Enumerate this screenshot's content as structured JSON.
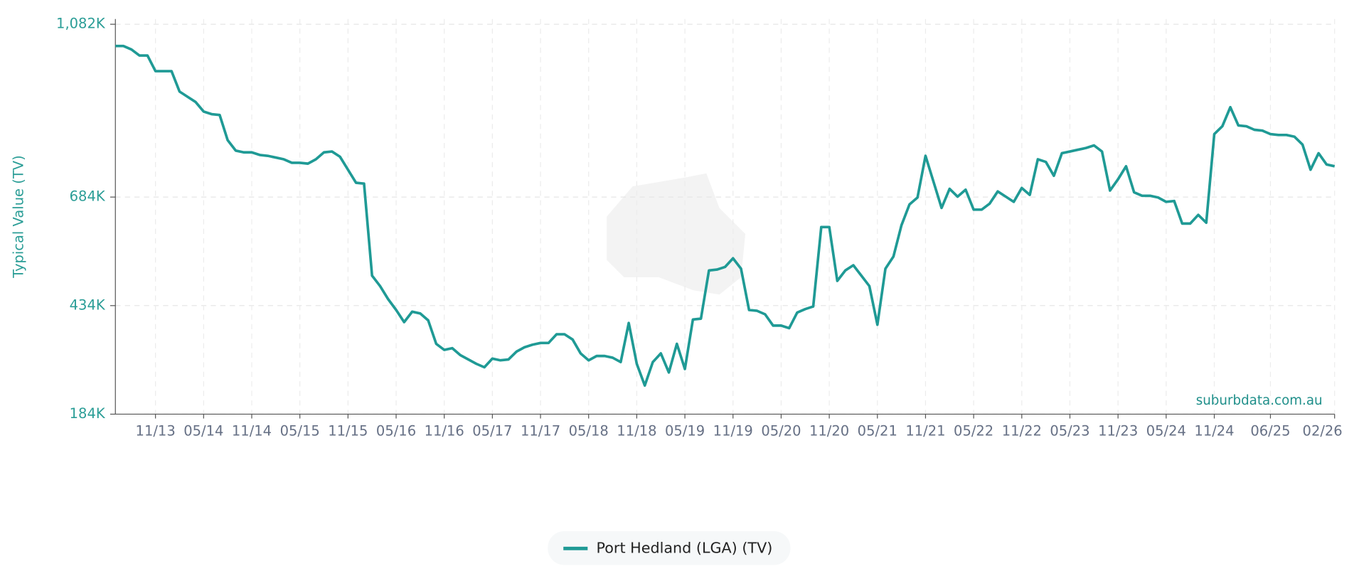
{
  "chart_data": {
    "type": "line",
    "y_label": "Typical Value (TV)",
    "watermark": "suburbdata.com.au",
    "x": [
      "06/13",
      "07/13",
      "08/13",
      "09/13",
      "10/13",
      "11/13",
      "12/13",
      "01/14",
      "02/14",
      "03/14",
      "04/14",
      "05/14",
      "06/14",
      "07/14",
      "08/14",
      "09/14",
      "10/14",
      "11/14",
      "12/14",
      "01/15",
      "02/15",
      "03/15",
      "04/15",
      "05/15",
      "06/15",
      "07/15",
      "08/15",
      "09/15",
      "10/15",
      "11/15",
      "12/15",
      "01/16",
      "02/16",
      "03/16",
      "04/16",
      "05/16",
      "06/16",
      "07/16",
      "08/16",
      "09/16",
      "10/16",
      "11/16",
      "12/16",
      "01/17",
      "02/17",
      "03/17",
      "04/17",
      "05/17",
      "06/17",
      "07/17",
      "08/17",
      "09/17",
      "10/17",
      "11/17",
      "12/17",
      "01/18",
      "02/18",
      "03/18",
      "04/18",
      "05/18",
      "06/18",
      "07/18",
      "08/18",
      "09/18",
      "10/18",
      "11/18",
      "12/18",
      "01/19",
      "02/19",
      "03/19",
      "04/19",
      "05/19",
      "06/19",
      "07/19",
      "08/19",
      "09/19",
      "10/19",
      "11/19",
      "12/19",
      "01/20",
      "02/20",
      "03/20",
      "04/20",
      "05/20",
      "06/20",
      "07/20",
      "08/20",
      "09/20",
      "10/20",
      "11/20",
      "12/20",
      "01/21",
      "02/21",
      "03/21",
      "04/21",
      "05/21",
      "06/21",
      "07/21",
      "08/21",
      "09/21",
      "10/21",
      "11/21",
      "12/21",
      "01/22",
      "02/22",
      "03/22",
      "04/22",
      "05/22",
      "06/22",
      "07/22",
      "08/22",
      "09/22",
      "10/22",
      "11/22",
      "12/22",
      "01/23",
      "02/23",
      "03/23",
      "04/23",
      "05/23",
      "06/23",
      "07/23",
      "08/23",
      "09/23",
      "10/23",
      "11/23",
      "12/23",
      "01/24",
      "02/24",
      "03/24",
      "04/24",
      "05/24",
      "06/24",
      "07/24",
      "08/24",
      "09/24",
      "10/24",
      "11/24",
      "12/24",
      "01/25",
      "02/25",
      "03/25",
      "04/25",
      "05/25",
      "06/25",
      "07/25",
      "08/25",
      "09/25",
      "10/25",
      "11/25",
      "12/25",
      "01/26",
      "02/26"
    ],
    "series": [
      {
        "name": "Port Hedland (LGA) (TV)",
        "color": "#1f9a95",
        "values": [
          1032,
          1032,
          1024,
          1010,
          1010,
          974,
          974,
          974,
          927,
          915,
          903,
          881,
          875,
          873,
          815,
          791,
          787,
          787,
          781,
          779,
          775,
          771,
          763,
          763,
          761,
          771,
          787,
          789,
          777,
          747,
          717,
          715,
          503,
          479,
          449,
          424,
          396,
          420,
          416,
          400,
          346,
          332,
          336,
          320,
          310,
          300,
          292,
          312,
          308,
          310,
          328,
          338,
          344,
          348,
          348,
          368,
          368,
          356,
          324,
          308,
          318,
          318,
          314,
          304,
          394,
          300,
          250,
          304,
          324,
          280,
          346,
          288,
          402,
          404,
          515,
          517,
          523,
          543,
          519,
          424,
          422,
          414,
          388,
          388,
          382,
          418,
          426,
          432,
          615,
          615,
          491,
          515,
          527,
          503,
          479,
          390,
          519,
          547,
          619,
          667,
          683,
          779,
          719,
          659,
          703,
          685,
          701,
          655,
          655,
          669,
          697,
          685,
          673,
          705,
          689,
          771,
          765,
          733,
          785,
          789,
          793,
          797,
          803,
          789,
          699,
          725,
          755,
          695,
          687,
          687,
          683,
          673,
          675,
          623,
          623,
          643,
          625,
          829,
          847,
          891,
          849,
          847,
          839,
          837,
          829,
          827,
          827,
          823,
          805,
          747,
          785,
          759,
          755
        ]
      }
    ],
    "ylim": [
      184,
      1082
    ],
    "yticks": [
      {
        "value": 184,
        "label": "184K"
      },
      {
        "value": 434,
        "label": "434K"
      },
      {
        "value": 684,
        "label": "684K"
      },
      {
        "value": 1082,
        "label": "1,082K"
      }
    ],
    "xticks": [
      "11/13",
      "05/14",
      "11/14",
      "05/15",
      "11/15",
      "05/16",
      "11/16",
      "05/17",
      "11/17",
      "05/18",
      "11/18",
      "05/19",
      "11/19",
      "05/20",
      "11/20",
      "05/21",
      "11/21",
      "05/22",
      "11/22",
      "05/23",
      "11/23",
      "05/24",
      "11/24",
      "06/25",
      "02/26"
    ],
    "grid": true
  }
}
